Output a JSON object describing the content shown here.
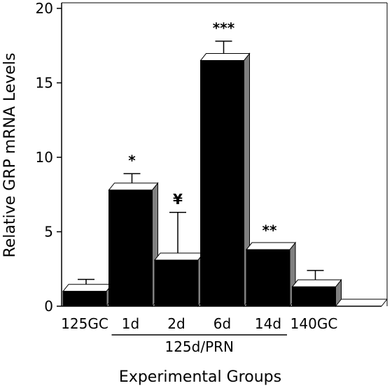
{
  "chart_data": {
    "type": "bar",
    "title": "",
    "xlabel": "Experimental Groups",
    "ylabel": "Relative GRP mRNA Levels",
    "ylim": [
      0,
      20
    ],
    "yticks": [
      "0",
      "5",
      "10",
      "15",
      "20"
    ],
    "categories": [
      "125GC",
      "1d",
      "2d",
      "6d",
      "14d",
      "140GC"
    ],
    "values": [
      1.0,
      7.8,
      3.1,
      16.5,
      3.8,
      1.3
    ],
    "errors": [
      0.8,
      1.1,
      3.2,
      1.3,
      0.4,
      1.1
    ],
    "significance": [
      "",
      "*",
      "¥",
      "***",
      "**",
      ""
    ],
    "group_label": "125d/PRN",
    "grouped_categories": [
      "1d",
      "2d",
      "6d",
      "14d"
    ],
    "grid": false,
    "colors": {
      "bar_front": "#000000",
      "bar_side": "#808080",
      "bar_top": "#ffffff"
    }
  }
}
